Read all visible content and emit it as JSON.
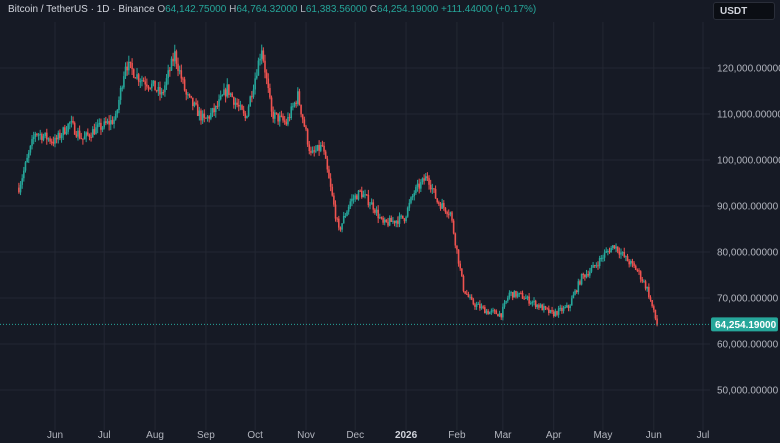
{
  "legend": {
    "symbol": "Bitcoin / TetherUS · 1D · Binance",
    "open_key": "O",
    "open": "64,142.75000",
    "high_key": "H",
    "high": "64,764.32000",
    "low_key": "L",
    "low": "61,383.56000",
    "close_key": "C",
    "close": "64,254.19000",
    "change": "+111.44000 (+0.17%)"
  },
  "currency_label": "USDT",
  "colors": {
    "up": "#26a69a",
    "down": "#ef5350",
    "background": "#161a25",
    "grid": "#232733"
  },
  "chart_data": {
    "type": "candlestick",
    "y_ticks": [
      {
        "value": 120000,
        "label": "120,000.00000"
      },
      {
        "value": 110000,
        "label": "110,000.00000"
      },
      {
        "value": 100000,
        "label": "100,000.00000"
      },
      {
        "value": 90000,
        "label": "90,000.00000"
      },
      {
        "value": 80000,
        "label": "80,000.00000"
      },
      {
        "value": 70000,
        "label": "70,000.00000"
      },
      {
        "value": 60000,
        "label": "60,000.00000"
      },
      {
        "value": 50000,
        "label": "50,000.00000"
      }
    ],
    "x_ticks": [
      {
        "date": "2025-06-01",
        "label": "Jun"
      },
      {
        "date": "2025-07-01",
        "label": "Jul"
      },
      {
        "date": "2025-08-01",
        "label": "Aug"
      },
      {
        "date": "2025-09-01",
        "label": "Sep"
      },
      {
        "date": "2025-10-01",
        "label": "Oct"
      },
      {
        "date": "2025-11-01",
        "label": "Nov"
      },
      {
        "date": "2025-12-01",
        "label": "Dec"
      },
      {
        "date": "2026-01-01",
        "label": "2026",
        "bold": true
      },
      {
        "date": "2026-02-01",
        "label": "Feb"
      },
      {
        "date": "2026-03-01",
        "label": "Mar"
      },
      {
        "date": "2026-04-01",
        "label": "Apr"
      },
      {
        "date": "2026-05-01",
        "label": "May"
      },
      {
        "date": "2026-06-01",
        "label": "Jun"
      },
      {
        "date": "2026-07-01",
        "label": "Jul"
      }
    ],
    "last_price": 64254.19,
    "last_price_label": "64,254.19000",
    "close_series": [
      {
        "date": "2025-05-10",
        "close": 94000
      },
      {
        "date": "2025-05-20",
        "close": 106000
      },
      {
        "date": "2025-06-01",
        "close": 104000
      },
      {
        "date": "2025-06-10",
        "close": 108000
      },
      {
        "date": "2025-06-18",
        "close": 104500
      },
      {
        "date": "2025-06-25",
        "close": 106500
      },
      {
        "date": "2025-07-01",
        "close": 107500
      },
      {
        "date": "2025-07-08",
        "close": 109000
      },
      {
        "date": "2025-07-14",
        "close": 121000
      },
      {
        "date": "2025-07-22",
        "close": 118000
      },
      {
        "date": "2025-07-31",
        "close": 116000
      },
      {
        "date": "2025-08-05",
        "close": 114000
      },
      {
        "date": "2025-08-13",
        "close": 123000
      },
      {
        "date": "2025-08-20",
        "close": 114000
      },
      {
        "date": "2025-08-31",
        "close": 108500
      },
      {
        "date": "2025-09-07",
        "close": 111000
      },
      {
        "date": "2025-09-14",
        "close": 115500
      },
      {
        "date": "2025-09-25",
        "close": 109000
      },
      {
        "date": "2025-10-01",
        "close": 118000
      },
      {
        "date": "2025-10-05",
        "close": 124500
      },
      {
        "date": "2025-10-11",
        "close": 110000
      },
      {
        "date": "2025-10-20",
        "close": 108000
      },
      {
        "date": "2025-10-27",
        "close": 114000
      },
      {
        "date": "2025-11-04",
        "close": 101000
      },
      {
        "date": "2025-11-11",
        "close": 103000
      },
      {
        "date": "2025-11-21",
        "close": 84500
      },
      {
        "date": "2025-11-28",
        "close": 91000
      },
      {
        "date": "2025-12-04",
        "close": 93000
      },
      {
        "date": "2025-12-12",
        "close": 90000
      },
      {
        "date": "2025-12-18",
        "close": 86000
      },
      {
        "date": "2025-12-31",
        "close": 87500
      },
      {
        "date": "2026-01-06",
        "close": 93000
      },
      {
        "date": "2026-01-14",
        "close": 96500
      },
      {
        "date": "2026-01-20",
        "close": 91000
      },
      {
        "date": "2026-01-28",
        "close": 88500
      },
      {
        "date": "2026-02-05",
        "close": 72000
      },
      {
        "date": "2026-02-10",
        "close": 69000
      },
      {
        "date": "2026-02-20",
        "close": 67000
      },
      {
        "date": "2026-02-28",
        "close": 66500
      },
      {
        "date": "2026-03-05",
        "close": 71000
      },
      {
        "date": "2026-03-12",
        "close": 70500
      },
      {
        "date": "2026-03-22",
        "close": 68500
      },
      {
        "date": "2026-03-31",
        "close": 66500
      },
      {
        "date": "2026-04-10",
        "close": 68000
      },
      {
        "date": "2026-04-18",
        "close": 74500
      },
      {
        "date": "2026-04-25",
        "close": 76500
      },
      {
        "date": "2026-05-02",
        "close": 79500
      },
      {
        "date": "2026-05-08",
        "close": 81500
      },
      {
        "date": "2026-05-15",
        "close": 78500
      },
      {
        "date": "2026-05-22",
        "close": 76000
      },
      {
        "date": "2026-05-28",
        "close": 72000
      },
      {
        "date": "2026-06-03",
        "close": 64254
      }
    ]
  }
}
